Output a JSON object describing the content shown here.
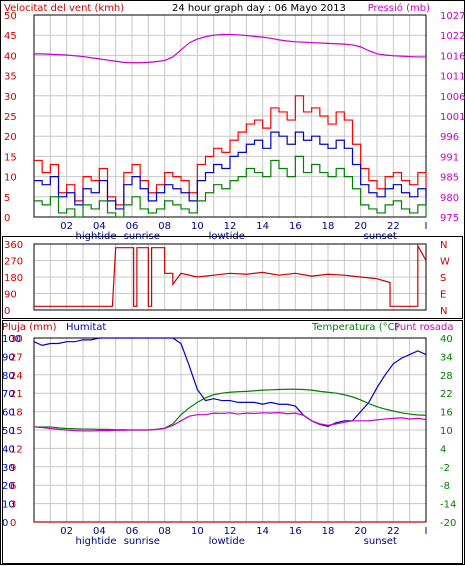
{
  "header": {
    "title": "24 hour graph day : 06 Mayo 2013"
  },
  "colors": {
    "wind_speed": "#ff0000",
    "wind_avg": "#0000cc",
    "wind_low": "#008000",
    "pressure": "#cc00cc",
    "wind_dir": "#cc0000",
    "rain": "#cc0000",
    "humidity": "#0000cc",
    "temperature": "#008000",
    "dewpoint": "#cc00cc",
    "grid": "#c8c8c8",
    "axis_text": "#cc0000",
    "frame": "#000000"
  },
  "x_axis": {
    "hour_labels": [
      "02",
      "04",
      "06",
      "08",
      "10",
      "12",
      "14",
      "16",
      "18",
      "20",
      "22",
      "I"
    ],
    "hour_values": [
      2,
      4,
      6,
      8,
      10,
      12,
      14,
      16,
      18,
      20,
      22,
      24
    ],
    "events": [
      {
        "label": "hightide",
        "hour": 3.8
      },
      {
        "label": "sunrise",
        "hour": 6.6
      },
      {
        "label": "lowtide",
        "hour": 11.8
      },
      {
        "label": "sunset",
        "hour": 21.2
      }
    ]
  },
  "chart_data": [
    {
      "type": "line",
      "name": "wind_pressure",
      "left_label": "Velocitat del vent (kmh)",
      "right_label": "Pressió (mb)",
      "left_ticks": [
        "50",
        "45",
        "40",
        "35",
        "30",
        "25",
        "20",
        "15",
        "10",
        "5",
        "0"
      ],
      "right_ticks": [
        "1027",
        "1022",
        "1016",
        "1011",
        "1006",
        "1001",
        "996",
        "991",
        "985",
        "980",
        "975"
      ],
      "ylim": [
        0,
        50
      ],
      "y2lim": [
        975,
        1027
      ],
      "x": [
        0,
        0.5,
        1,
        1.5,
        2,
        2.5,
        3,
        3.5,
        4,
        4.5,
        5,
        5.5,
        6,
        6.5,
        7,
        7.5,
        8,
        8.5,
        9,
        9.5,
        10,
        10.5,
        11,
        11.5,
        12,
        12.5,
        13,
        13.5,
        14,
        14.5,
        15,
        15.5,
        16,
        16.5,
        17,
        17.5,
        18,
        18.5,
        19,
        19.5,
        20,
        20.5,
        21,
        21.5,
        22,
        22.5,
        23,
        23.5,
        24
      ],
      "series": [
        {
          "key": "gust",
          "values": [
            14,
            11,
            13,
            6,
            8,
            4,
            10,
            9,
            12,
            5,
            3,
            11,
            13,
            9,
            6,
            8,
            11,
            10,
            9,
            6,
            13,
            15,
            17,
            16,
            19,
            21,
            23,
            24,
            22,
            27,
            26,
            24,
            30,
            26,
            27,
            25,
            23,
            26,
            24,
            18,
            12,
            9,
            7,
            10,
            11,
            9,
            8,
            11,
            5
          ]
        },
        {
          "key": "average",
          "values": [
            9,
            8,
            10,
            5,
            6,
            3,
            7,
            6,
            9,
            4,
            2,
            8,
            10,
            7,
            4,
            6,
            8,
            7,
            6,
            4,
            9,
            11,
            13,
            12,
            15,
            16,
            18,
            19,
            17,
            21,
            20,
            18,
            21,
            19,
            20,
            18,
            17,
            19,
            17,
            13,
            8,
            6,
            5,
            7,
            8,
            6,
            5,
            7,
            3
          ]
        },
        {
          "key": "low",
          "values": [
            4,
            3,
            5,
            1,
            2,
            0,
            3,
            2,
            4,
            1,
            0,
            3,
            5,
            2,
            1,
            2,
            4,
            3,
            2,
            1,
            4,
            6,
            8,
            7,
            9,
            10,
            12,
            11,
            10,
            14,
            12,
            10,
            15,
            11,
            13,
            11,
            10,
            12,
            10,
            7,
            3,
            2,
            1,
            3,
            4,
            2,
            1,
            3,
            0
          ]
        },
        {
          "key": "pressure",
          "values": [
            1017.0,
            1017.0,
            1016.9,
            1016.8,
            1016.7,
            1016.5,
            1016.3,
            1016.0,
            1015.7,
            1015.4,
            1015.1,
            1014.8,
            1014.7,
            1014.7,
            1014.8,
            1015.0,
            1015.3,
            1016.2,
            1018.0,
            1019.8,
            1020.8,
            1021.4,
            1021.8,
            1022.0,
            1022.0,
            1021.9,
            1021.7,
            1021.5,
            1021.3,
            1021.0,
            1020.6,
            1020.3,
            1020.1,
            1020.0,
            1019.9,
            1019.8,
            1019.7,
            1019.6,
            1019.5,
            1019.3,
            1018.8,
            1017.8,
            1017.0,
            1016.7,
            1016.5,
            1016.4,
            1016.3,
            1016.2,
            1016.2
          ]
        }
      ]
    },
    {
      "type": "line",
      "name": "wind_direction",
      "left_ticks": [
        "360",
        "270",
        "180",
        "90",
        "0"
      ],
      "right_ticks": [
        "N",
        "W",
        "S",
        "E",
        "N"
      ],
      "ylim": [
        0,
        360
      ],
      "x": [
        0,
        0.4,
        0.4,
        4.8,
        4.8,
        5.0,
        5.0,
        6.1,
        6.1,
        6.3,
        6.3,
        7.0,
        7.0,
        7.2,
        7.2,
        8.0,
        8.0,
        8.5,
        8.5,
        9,
        10,
        11,
        12,
        13,
        14,
        15,
        16,
        17,
        18,
        19,
        20,
        21,
        21.8,
        21.8,
        23.5,
        23.5,
        24
      ],
      "values": [
        20,
        20,
        20,
        20,
        20,
        340,
        340,
        340,
        20,
        20,
        340,
        340,
        20,
        20,
        340,
        340,
        200,
        200,
        140,
        200,
        180,
        190,
        200,
        195,
        205,
        190,
        200,
        185,
        195,
        190,
        180,
        170,
        150,
        20,
        20,
        350,
        270
      ]
    },
    {
      "type": "line",
      "name": "rain_humidity_temperature",
      "legend": [
        "Pluja (mm)",
        "Humitat",
        "Temperatura (°C)",
        "Punt rosada"
      ],
      "left_ticks": [
        "30",
        "27",
        "24",
        "21",
        "18",
        "15",
        "12",
        "9",
        "6",
        "3",
        "0"
      ],
      "humidity_ticks": [
        "100",
        "90",
        "80",
        "70",
        "60",
        "50",
        "40",
        "30",
        "20",
        "10",
        "0"
      ],
      "right_ticks": [
        "40",
        "34",
        "28",
        "22",
        "16",
        "10",
        "4",
        "-2",
        "-8",
        "-14",
        "-20"
      ],
      "ylim": [
        0,
        30
      ],
      "y2lim": [
        -20,
        40
      ],
      "x": [
        0,
        0.5,
        1,
        1.5,
        2,
        2.5,
        3,
        3.5,
        4,
        4.5,
        5,
        5.5,
        6,
        6.5,
        7,
        7.5,
        8,
        8.5,
        9,
        9.5,
        10,
        10.5,
        11,
        11.5,
        12,
        12.5,
        13,
        13.5,
        14,
        14.5,
        15,
        15.5,
        16,
        16.5,
        17,
        17.5,
        18,
        18.5,
        19,
        19.5,
        20,
        20.5,
        21,
        21.5,
        22,
        22.5,
        23,
        23.5,
        24
      ],
      "series": [
        {
          "key": "rain",
          "values": [
            0,
            0,
            0,
            0,
            0,
            0,
            0,
            0,
            0,
            0,
            0,
            0,
            0,
            0,
            0,
            0,
            0,
            0,
            0,
            0,
            0,
            0,
            0,
            0,
            0,
            0,
            0,
            0,
            0,
            0,
            0,
            0,
            0,
            0,
            0,
            0,
            0,
            0,
            0,
            0,
            0,
            0,
            0,
            0,
            0,
            0,
            0,
            0,
            0
          ]
        },
        {
          "key": "humidity",
          "values": [
            98,
            96,
            97,
            97,
            98,
            98,
            99,
            99,
            100,
            100,
            100,
            100,
            100,
            100,
            100,
            100,
            100,
            100,
            97,
            85,
            72,
            66,
            67,
            66,
            66,
            65,
            65,
            65,
            64,
            65,
            64,
            64,
            63,
            58,
            55,
            53,
            52,
            54,
            55,
            55,
            60,
            65,
            73,
            80,
            86,
            89,
            91,
            93,
            91
          ]
        },
        {
          "key": "temperature",
          "values": [
            11,
            11,
            11,
            10.7,
            10.5,
            10.4,
            10.3,
            10.3,
            10.2,
            10.2,
            10.1,
            10.1,
            10.0,
            10.0,
            10.0,
            10.2,
            10.6,
            12,
            15,
            17.2,
            19,
            20.5,
            21.5,
            22,
            22.3,
            22.5,
            22.6,
            22.8,
            23,
            23.1,
            23.2,
            23.3,
            23.3,
            23.2,
            23,
            22.6,
            22.3,
            22,
            21.5,
            20.8,
            19.8,
            18.6,
            17.6,
            16.8,
            16.2,
            15.6,
            15.2,
            14.9,
            14.8
          ]
        },
        {
          "key": "dewpoint",
          "values": [
            11,
            10.8,
            10.5,
            10.2,
            10.0,
            9.8,
            9.7,
            9.7,
            9.8,
            9.8,
            9.9,
            9.9,
            10,
            10,
            10,
            10.2,
            10.5,
            11.5,
            13,
            14.5,
            15,
            15,
            15.5,
            15.4,
            15.6,
            15.2,
            15.5,
            15.4,
            15.6,
            15.5,
            15.7,
            15.3,
            15.5,
            14.8,
            13,
            12,
            11.5,
            12,
            12.5,
            13,
            13,
            13,
            13.3,
            13.6,
            13.8,
            14,
            13.6,
            13.8,
            13.4
          ]
        }
      ]
    }
  ]
}
